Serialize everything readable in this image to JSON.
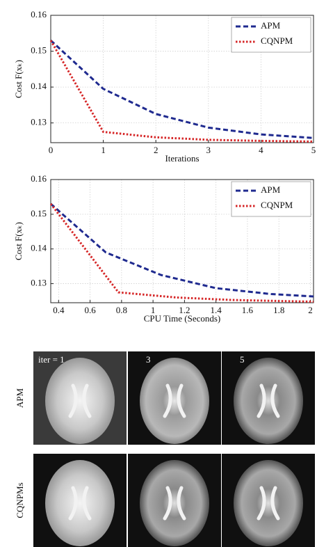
{
  "chart_data": [
    {
      "type": "line",
      "ylabel": "Cost F(xₖ)",
      "xlabel": "Iterations",
      "x": [
        0,
        1,
        2,
        3,
        4,
        5
      ],
      "series": [
        {
          "name": "APM",
          "color": "#1f2a8f",
          "values": [
            0.153,
            0.1395,
            0.1325,
            0.1287,
            0.1268,
            0.1258
          ]
        },
        {
          "name": "CQNPM",
          "color": "#d62728",
          "values": [
            0.153,
            0.1275,
            0.126,
            0.1253,
            0.125,
            0.1248
          ]
        }
      ],
      "xlim": [
        0,
        5
      ],
      "xticks": [
        0,
        1,
        2,
        3,
        4,
        5
      ],
      "ylim": [
        0.1245,
        0.16
      ],
      "yticks": [
        0.13,
        0.14,
        0.15,
        0.16
      ],
      "grid": true,
      "legend": "upper-right"
    },
    {
      "type": "line",
      "ylabel": "Cost F(xₖ)",
      "xlabel": "CPU Time (Seconds)",
      "series": [
        {
          "name": "APM",
          "color": "#1f2a8f",
          "x": [
            0.35,
            0.7,
            1.05,
            1.4,
            1.75,
            2.02
          ],
          "values": [
            0.153,
            0.139,
            0.1325,
            0.1287,
            0.127,
            0.1263
          ]
        },
        {
          "name": "CQNPM",
          "color": "#d62728",
          "x": [
            0.35,
            0.78,
            1.15,
            1.5,
            1.8,
            2.02
          ],
          "values": [
            0.153,
            0.1275,
            0.126,
            0.1253,
            0.125,
            0.1248
          ]
        }
      ],
      "xlim": [
        0.35,
        2.02
      ],
      "xticks": [
        0.4,
        0.6,
        0.8,
        1,
        1.2,
        1.4,
        1.6,
        1.8,
        2
      ],
      "ylim": [
        0.1245,
        0.16
      ],
      "yticks": [
        0.13,
        0.14,
        0.15,
        0.16
      ],
      "grid": true,
      "legend": "upper-right"
    }
  ],
  "image_grid": {
    "row_labels": [
      "APM",
      "CQNPMs"
    ],
    "column_labels": [
      "iter = 1",
      "3",
      "5"
    ]
  }
}
